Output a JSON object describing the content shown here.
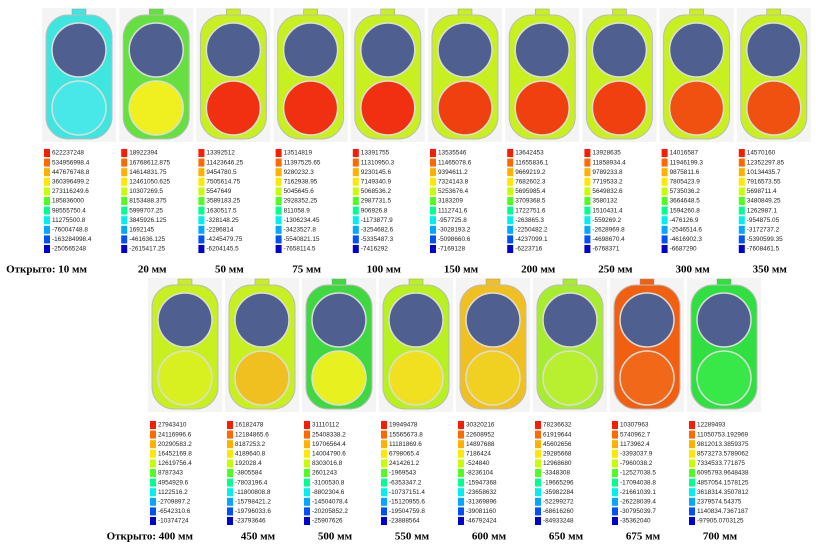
{
  "rows": [
    {
      "panels": [
        {
          "caption": "Открыто:  10 мм",
          "colors": {
            "body": "#3fe6e0",
            "upper": "#4f5f8f",
            "lower": "#48e8e8"
          },
          "legend": [
            "622237248",
            "534956998.4",
            "447676748.8",
            "360396499.2",
            "273116249.6",
            "185836000",
            "98555750.4",
            "11275500.8",
            "-76004748.8",
            "-163284998.4",
            "-250565248"
          ]
        },
        {
          "caption": "20 мм",
          "colors": {
            "body": "#66e040",
            "upper": "#4f5f8f",
            "lower": "#f0f020"
          },
          "legend": [
            "18922394",
            "16768612.875",
            "14614831.75",
            "12461050.625",
            "10307269.5",
            "8153488.375",
            "5999707.25",
            "3845926.125",
            "1692145",
            "-461636.125",
            "-2615417.25"
          ]
        },
        {
          "caption": "50 мм",
          "colors": {
            "body": "#c8f020",
            "upper": "#4f5f8f",
            "lower": "#f03010"
          },
          "legend": [
            "13392512",
            "11423646.25",
            "9454780.5",
            "7505614.75",
            "5547649",
            "3589183.25",
            "1630517.5",
            "-328148.25",
            "-2286814",
            "-4245479.75",
            "-6204145.5"
          ]
        },
        {
          "caption": "75 мм",
          "colors": {
            "body": "#c8f020",
            "upper": "#4f5f8f",
            "lower": "#f03010"
          },
          "legend": [
            "13514819",
            "11397525.65",
            "9280232.3",
            "7162938.95",
            "5045645.6",
            "2928352.25",
            "811058.9",
            "-1306234.45",
            "-3423527.8",
            "-5540821.15",
            "-7658114.5"
          ]
        },
        {
          "caption": "100 мм",
          "colors": {
            "body": "#c8f020",
            "upper": "#4f5f8f",
            "lower": "#f03010"
          },
          "legend": [
            "13391755",
            "11310950.3",
            "9230145.6",
            "7149340.9",
            "5068536.2",
            "2987731.5",
            "906926.8",
            "-1173877.9",
            "-3254682.6",
            "-5335487.3",
            "-7416292"
          ]
        },
        {
          "caption": "150 мм",
          "colors": {
            "body": "#c8f020",
            "upper": "#4f5f8f",
            "lower": "#f04010"
          },
          "legend": [
            "13535546",
            "11465078.6",
            "9394611.2",
            "7324143.8",
            "5253676.4",
            "3183209",
            "1112741.6",
            "-957725.8",
            "-3028193.2",
            "-5098660.6",
            "-7169128"
          ]
        },
        {
          "caption": "200 мм",
          "colors": {
            "body": "#c8f020",
            "upper": "#4f5f8f",
            "lower": "#f04010"
          },
          "legend": [
            "13642453",
            "11655836.1",
            "9669219.2",
            "7682602.3",
            "5695985.4",
            "3709368.5",
            "1722751.6",
            "-263865.3",
            "-2250482.2",
            "-4237099.1",
            "-6223716"
          ]
        },
        {
          "caption": "250 мм",
          "colors": {
            "body": "#c8f020",
            "upper": "#4f5f8f",
            "lower": "#f04010"
          },
          "legend": [
            "13928635",
            "11858934.4",
            "9789233.8",
            "7719533.2",
            "5649832.6",
            "3580132",
            "1510431.4",
            "-559269.2",
            "-2628969.8",
            "-4698670.4",
            "-6768371"
          ]
        },
        {
          "caption": "300 мм",
          "colors": {
            "body": "#c8f020",
            "upper": "#4f5f8f",
            "lower": "#f05010"
          },
          "legend": [
            "14016587",
            "11946199.3",
            "9875811.6",
            "7805423.9",
            "5735036.2",
            "3664648.5",
            "1594260.8",
            "-476126.9",
            "-2546514.6",
            "-4616902.3",
            "-6687290"
          ]
        },
        {
          "caption": "350 мм",
          "colors": {
            "body": "#c8f020",
            "upper": "#4f5f8f",
            "lower": "#f05010"
          },
          "legend": [
            "14570160",
            "12352297.85",
            "10134435.7",
            "7916573.55",
            "5698711.4",
            "3480849.25",
            "1262987.1",
            "-954875.05",
            "-3172737.2",
            "-5390599.35",
            "-7608461.5"
          ]
        }
      ]
    },
    {
      "panels": [
        {
          "caption": "Открыто:  400 мм",
          "colors": {
            "body": "#c8f020",
            "upper": "#4f5f8f",
            "lower": "#d8f020"
          },
          "legend": [
            "27943410",
            "24116996.6",
            "20290583.2",
            "16452169.8",
            "12619756.4",
            "8787343",
            "4954929.6",
            "1122516.2",
            "-2709897.2",
            "-6542310.6",
            "-10374724"
          ]
        },
        {
          "caption": "450 мм",
          "colors": {
            "body": "#c8f020",
            "upper": "#4f5f8f",
            "lower": "#f0c020"
          },
          "legend": [
            "16182478",
            "12184865.6",
            "8187253.2",
            "4189640.8",
            "192028.4",
            "-3805584",
            "-7803196.4",
            "-11800808.8",
            "-15798421.2",
            "-19796033.6",
            "-23793646"
          ]
        },
        {
          "caption": "500 мм",
          "colors": {
            "body": "#40d840",
            "upper": "#4f5f8f",
            "lower": "#e8f020"
          },
          "legend": [
            "31110112",
            "25408338.2",
            "19706564.4",
            "14004790.6",
            "8303016.8",
            "2601243",
            "-3100530.8",
            "-8802304.6",
            "-14504078.4",
            "-20205852.2",
            "-25907626"
          ]
        },
        {
          "caption": "550 мм",
          "colors": {
            "body": "#b8f020",
            "upper": "#4f5f8f",
            "lower": "#f0e020"
          },
          "legend": [
            "19949478",
            "15565673.8",
            "11181869.6",
            "6798065.4",
            "2414261.2",
            "-1969543",
            "-6353347.2",
            "-10737151.4",
            "-15120955.6",
            "-19504759.8",
            "-23888564"
          ]
        },
        {
          "caption": "600 мм",
          "colors": {
            "body": "#f0c020",
            "upper": "#4f5f8f",
            "lower": "#f0d020"
          },
          "legend": [
            "30320216",
            "22608952",
            "14897688",
            "7186424",
            "-524840",
            "-8236104",
            "-15947368",
            "-23658632",
            "-31369896",
            "-39081160",
            "-46792424"
          ]
        },
        {
          "caption": "650 мм",
          "colors": {
            "body": "#a8ec30",
            "upper": "#4f5f8f",
            "lower": "#b8f030"
          },
          "legend": [
            "78236632",
            "61919644",
            "45602656",
            "29285668",
            "12968680",
            "-3348308",
            "-19665296",
            "-35982284",
            "-52299272",
            "-68616260",
            "-84933248"
          ]
        },
        {
          "caption": "675 мм",
          "colors": {
            "body": "#f06010",
            "upper": "#4f5f8f",
            "lower": "#f06818"
          },
          "legend": [
            "10307963",
            "5740962.7",
            "1173962.4",
            "-3393037.9",
            "-7960038.2",
            "-12527038.5",
            "-17094038.8",
            "-21661039.1",
            "-26228039.4",
            "-30795039.7",
            "-35362040"
          ]
        },
        {
          "caption": "700 мм",
          "colors": {
            "body": "#30e040",
            "upper": "#4f5f8f",
            "lower": "#38e848"
          },
          "legend": [
            "12289493",
            "11050753.192969",
            "9812013.3859375",
            "8573273.5789062",
            "7334533.771875",
            "6095793.9648438",
            "4857054.1578125",
            "3618314.3507812",
            "2379574.54375",
            "1140834.7367187",
            "-97905.0703125"
          ]
        }
      ]
    }
  ]
}
